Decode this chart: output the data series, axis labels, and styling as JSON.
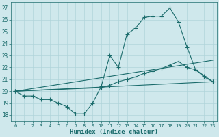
{
  "xlabel": "Humidex (Indice chaleur)",
  "xlim": [
    -0.5,
    23.5
  ],
  "ylim": [
    17.5,
    27.5
  ],
  "yticks": [
    18,
    19,
    20,
    21,
    22,
    23,
    24,
    25,
    26,
    27
  ],
  "xticks": [
    0,
    1,
    2,
    3,
    4,
    5,
    6,
    7,
    8,
    9,
    10,
    11,
    12,
    13,
    14,
    15,
    16,
    17,
    18,
    19,
    20,
    21,
    22,
    23
  ],
  "background_color": "#cfe8ec",
  "grid_color": "#b0d4da",
  "line_color": "#1a6b6b",
  "line1_x": [
    0,
    1,
    2,
    3,
    4,
    5,
    6,
    7,
    8,
    9,
    10,
    11,
    12,
    13,
    14,
    15,
    16,
    17,
    18,
    19,
    20,
    21,
    22,
    23
  ],
  "line1_y": [
    20.0,
    19.6,
    19.6,
    19.3,
    19.3,
    19.0,
    18.7,
    18.1,
    18.1,
    19.0,
    20.4,
    23.0,
    22.0,
    24.8,
    25.3,
    26.2,
    26.3,
    26.3,
    27.0,
    25.8,
    23.7,
    21.8,
    21.2,
    20.8
  ],
  "line2_x": [
    0,
    23
  ],
  "line2_y": [
    20.0,
    20.8
  ],
  "line3_x": [
    0,
    23
  ],
  "line3_y": [
    20.0,
    22.6
  ],
  "line4_x": [
    0,
    10,
    11,
    12,
    13,
    14,
    15,
    16,
    17,
    18,
    19,
    20,
    21,
    22,
    23
  ],
  "line4_y": [
    20.0,
    20.3,
    20.5,
    20.8,
    21.0,
    21.2,
    21.5,
    21.7,
    21.9,
    22.2,
    22.5,
    22.0,
    21.8,
    21.3,
    20.8
  ]
}
